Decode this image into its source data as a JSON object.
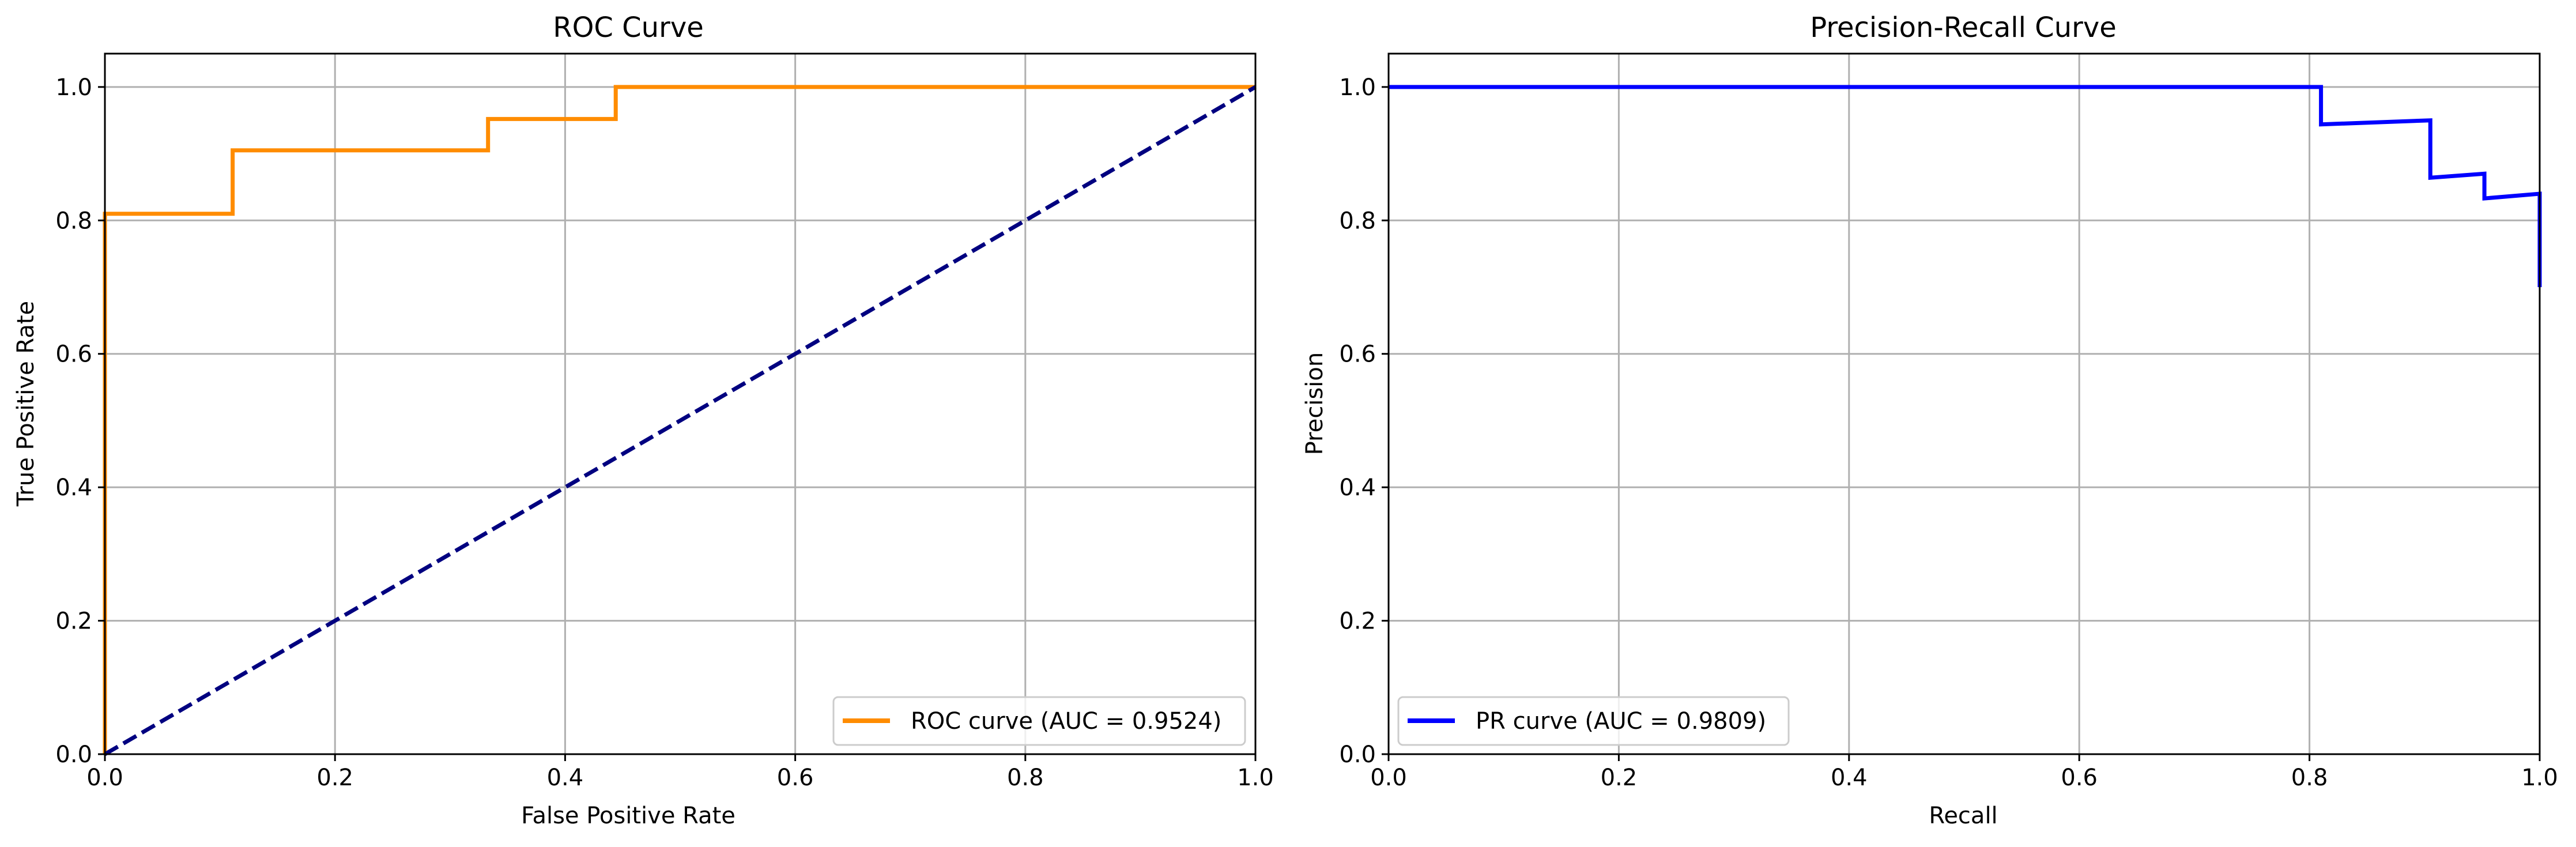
{
  "chart_data": [
    {
      "type": "line",
      "title": "ROC Curve",
      "xlabel": "False Positive Rate",
      "ylabel": "True Positive Rate",
      "xlim": [
        0.0,
        1.0
      ],
      "ylim": [
        0.0,
        1.05
      ],
      "xticks": [
        0.0,
        0.2,
        0.4,
        0.6,
        0.8,
        1.0
      ],
      "yticks": [
        0.0,
        0.2,
        0.4,
        0.6,
        0.8,
        1.0
      ],
      "xtick_labels": [
        "0.0",
        "0.2",
        "0.4",
        "0.6",
        "0.8",
        "1.0"
      ],
      "ytick_labels": [
        "0.0",
        "0.2",
        "0.4",
        "0.6",
        "0.8",
        "1.0"
      ],
      "grid": true,
      "legend_position": "lower right",
      "series": [
        {
          "name": "ROC curve (AUC = 0.9524)",
          "color": "#ff8c00",
          "style": "solid",
          "in_legend": true,
          "x": [
            0.0,
            0.0,
            0.0,
            0.111,
            0.111,
            0.333,
            0.333,
            0.444,
            0.444,
            1.0
          ],
          "y": [
            0.0,
            0.048,
            0.81,
            0.81,
            0.905,
            0.905,
            0.952,
            0.952,
            1.0,
            1.0
          ]
        },
        {
          "name": "",
          "color": "#000080",
          "style": "dashed",
          "in_legend": false,
          "x": [
            0.0,
            1.0
          ],
          "y": [
            0.0,
            1.0
          ]
        }
      ]
    },
    {
      "type": "line",
      "title": "Precision-Recall Curve",
      "xlabel": "Recall",
      "ylabel": "Precision",
      "xlim": [
        0.0,
        1.0
      ],
      "ylim": [
        0.0,
        1.05
      ],
      "xticks": [
        0.0,
        0.2,
        0.4,
        0.6,
        0.8,
        1.0
      ],
      "yticks": [
        0.0,
        0.2,
        0.4,
        0.6,
        0.8,
        1.0
      ],
      "xtick_labels": [
        "0.0",
        "0.2",
        "0.4",
        "0.6",
        "0.8",
        "1.0"
      ],
      "ytick_labels": [
        "0.0",
        "0.2",
        "0.4",
        "0.6",
        "0.8",
        "1.0"
      ],
      "grid": true,
      "legend_position": "lower left",
      "series": [
        {
          "name": "PR curve (AUC = 0.9809)",
          "color": "#0000ff",
          "style": "solid",
          "in_legend": true,
          "x": [
            0.0,
            0.81,
            0.81,
            0.905,
            0.905,
            0.952,
            0.952,
            1.0,
            1.0
          ],
          "y": [
            1.0,
            1.0,
            0.944,
            0.95,
            0.864,
            0.87,
            0.833,
            0.84,
            0.7
          ]
        }
      ]
    }
  ]
}
